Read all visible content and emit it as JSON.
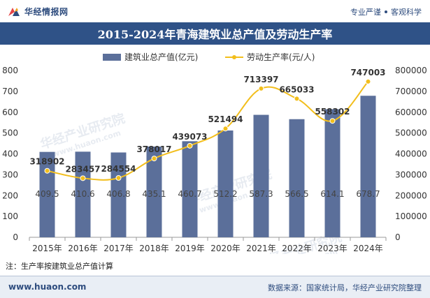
{
  "header": {
    "brand": "华经情报网",
    "slogan_left": "专业严谨",
    "slogan_right": "客观科学"
  },
  "title": "2015-2024年青海建筑业总产值及劳动生产率",
  "legend": {
    "bar": "建筑业总产值(亿元)",
    "line": "劳动生产率(元/人)"
  },
  "note": "注：生产率按建筑业总产值计算",
  "footer": {
    "site": "www.huaon.com",
    "source": "数据来源：国家统计局，华经产业研究院整理"
  },
  "watermark": {
    "main": "华经产业研究院",
    "sub": "www.huaon.com"
  },
  "colors": {
    "bar": "#5b6f9a",
    "line": "#f2be1c",
    "title_bg": "#2f5287",
    "brand": "#2e4c7e"
  },
  "chart_data": {
    "type": "bar",
    "categories": [
      "2015年",
      "2016年",
      "2017年",
      "2018年",
      "2019年",
      "2020年",
      "2021年",
      "2022年",
      "2023年",
      "2024年"
    ],
    "series": [
      {
        "name": "建筑业总产值(亿元)",
        "type": "bar",
        "axis": "left",
        "values": [
          409.5,
          410.6,
          406.8,
          435.1,
          460.7,
          512.2,
          587.3,
          566.5,
          614.1,
          678.7
        ]
      },
      {
        "name": "劳动生产率(元/人)",
        "type": "line",
        "axis": "right",
        "values": [
          318902,
          283457,
          284554,
          378017,
          439073,
          521494,
          713397,
          665033,
          558302,
          747003
        ]
      }
    ],
    "y_left": {
      "range": [
        0,
        800
      ],
      "ticks": [
        0,
        100,
        200,
        300,
        400,
        500,
        600,
        700,
        800
      ]
    },
    "y_right": {
      "range": [
        0,
        800000
      ],
      "ticks": [
        0,
        100000,
        200000,
        300000,
        400000,
        500000,
        600000,
        700000,
        800000
      ]
    },
    "legend_position": "top-center",
    "grid": false
  }
}
